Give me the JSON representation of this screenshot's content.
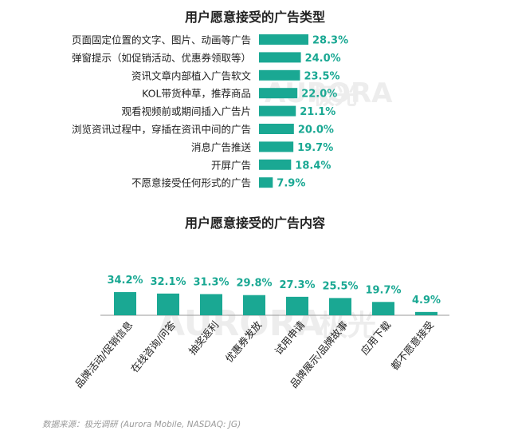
{
  "theme": {
    "bar_color": "#1aa893",
    "label_color": "#1aa893",
    "text_color": "#222222"
  },
  "watermark": {
    "latin": "AURORA",
    "cjk": "极光"
  },
  "source_note": "数据来源：极光调研 (Aurora Mobile, NASDAQ: JG)",
  "chart_data": [
    {
      "type": "bar",
      "orientation": "horizontal",
      "title": "用户愿意接受的广告类型",
      "categories": [
        "页面固定位置的文字、图片、动画等广告",
        "弹窗提示（如促销活动、优惠券领取等）",
        "资讯文章内部植入广告软文",
        "KOL带货种草，推荐商品",
        "观看视频前或期间插入广告片",
        "浏览资讯过程中，穿插在资讯中间的广告",
        "消息广告推送",
        "开屏广告",
        "不愿意接受任何形式的广告"
      ],
      "values": [
        28.3,
        24.0,
        23.5,
        22.0,
        21.1,
        20.0,
        19.7,
        18.4,
        7.9
      ],
      "value_labels": [
        "28.3%",
        "24.0%",
        "23.5%",
        "22.0%",
        "21.1%",
        "20.0%",
        "19.7%",
        "18.4%",
        "7.9%"
      ],
      "unit": "%"
    },
    {
      "type": "bar",
      "orientation": "vertical",
      "title": "用户愿意接受的广告内容",
      "categories": [
        "品牌活动/促销信息",
        "在线咨询/问答",
        "抽奖返利",
        "优惠券发放",
        "试用申请",
        "品牌展示/品牌故事",
        "应用下载",
        "都不愿意接受"
      ],
      "values": [
        34.2,
        32.1,
        31.3,
        29.8,
        27.3,
        25.5,
        19.7,
        4.9
      ],
      "value_labels": [
        "34.2%",
        "32.1%",
        "31.3%",
        "29.8%",
        "27.3%",
        "25.5%",
        "19.7%",
        "4.9%"
      ],
      "unit": "%"
    }
  ]
}
